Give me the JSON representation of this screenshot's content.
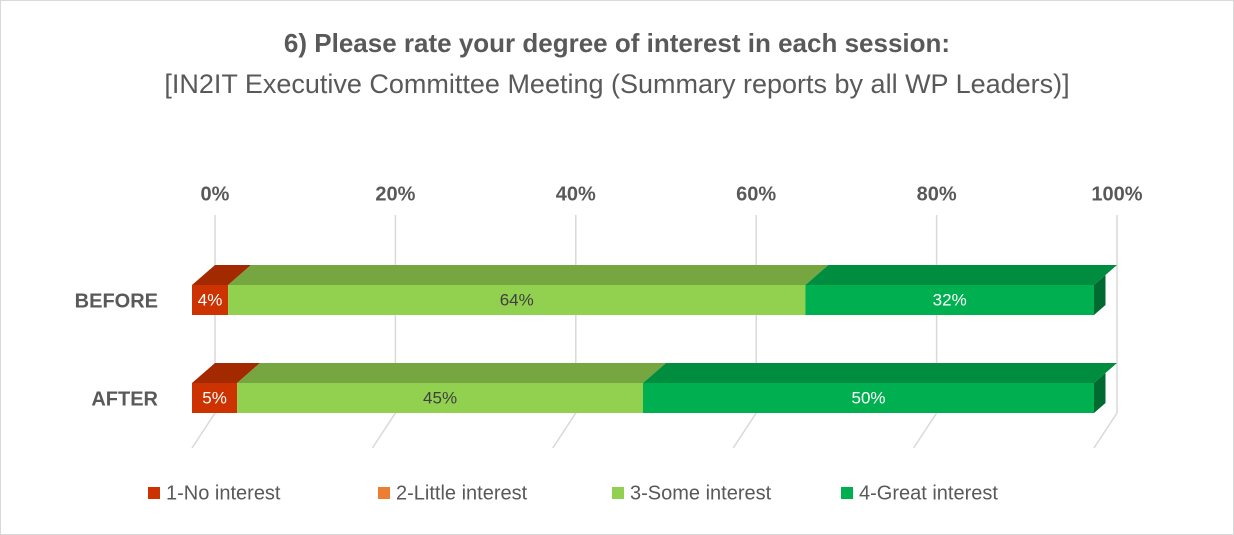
{
  "chart_data": {
    "type": "stacked-bar-horizontal",
    "title": "6) Please rate your degree of interest in each session:",
    "subtitle": "[IN2IT Executive Committee Meeting (Summary reports by all WP Leaders)]",
    "categories": [
      "BEFORE",
      "AFTER"
    ],
    "series": [
      {
        "name": "1-No interest",
        "color": "#cc3300",
        "values": [
          4,
          5
        ],
        "value_labels": [
          "4%",
          "5%"
        ]
      },
      {
        "name": "2-Little interest",
        "color": "#ed7d31",
        "values": [
          0,
          0
        ]
      },
      {
        "name": "3-Some interest",
        "color": "#92d050",
        "values": [
          64,
          45
        ],
        "value_labels": [
          "64%",
          "45%"
        ]
      },
      {
        "name": "4-Great interest",
        "color": "#00b050",
        "values": [
          32,
          50
        ],
        "value_labels": [
          "32%",
          "50%"
        ]
      }
    ],
    "xlim": [
      0,
      100
    ],
    "xticks": [
      {
        "value": 0,
        "label": "0%"
      },
      {
        "value": 20,
        "label": "20%"
      },
      {
        "value": 40,
        "label": "40%"
      },
      {
        "value": 60,
        "label": "60%"
      },
      {
        "value": 80,
        "label": "80%"
      },
      {
        "value": 100,
        "label": "100%"
      }
    ],
    "grid": true,
    "legend": "bottom"
  }
}
